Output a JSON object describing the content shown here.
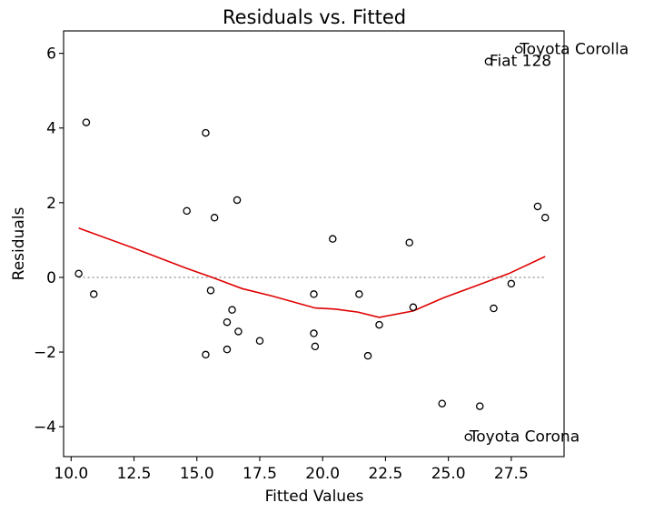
{
  "chart_data": {
    "type": "scatter",
    "title": "Residuals vs. Fitted",
    "xlabel": "Fitted Values",
    "ylabel": "Residuals",
    "xlim": [
      9.7,
      29.6
    ],
    "ylim": [
      -4.8,
      6.6
    ],
    "x_ticks": [
      10.0,
      12.5,
      15.0,
      17.5,
      20.0,
      22.5,
      25.0,
      27.5
    ],
    "x_tick_labels": [
      "10.0",
      "12.5",
      "15.0",
      "17.5",
      "20.0",
      "22.5",
      "25.0",
      "27.5"
    ],
    "y_ticks": [
      -4,
      -2,
      0,
      2,
      4,
      6
    ],
    "y_tick_labels": [
      "−4",
      "−2",
      "0",
      "2",
      "4",
      "6"
    ],
    "grid": false,
    "points": [
      {
        "x": 10.3,
        "y": 0.1
      },
      {
        "x": 10.6,
        "y": 4.15
      },
      {
        "x": 10.9,
        "y": -0.45
      },
      {
        "x": 14.6,
        "y": 1.78
      },
      {
        "x": 15.35,
        "y": 3.87
      },
      {
        "x": 15.35,
        "y": -2.07
      },
      {
        "x": 15.55,
        "y": -0.35
      },
      {
        "x": 15.7,
        "y": 1.6
      },
      {
        "x": 16.2,
        "y": -1.2
      },
      {
        "x": 16.2,
        "y": -1.93
      },
      {
        "x": 16.4,
        "y": -0.87
      },
      {
        "x": 16.6,
        "y": 2.07
      },
      {
        "x": 16.65,
        "y": -1.45
      },
      {
        "x": 17.5,
        "y": -1.7
      },
      {
        "x": 19.65,
        "y": -0.45
      },
      {
        "x": 19.65,
        "y": -1.5
      },
      {
        "x": 19.7,
        "y": -1.85
      },
      {
        "x": 20.4,
        "y": 1.03
      },
      {
        "x": 21.45,
        "y": -0.45
      },
      {
        "x": 21.8,
        "y": -2.1
      },
      {
        "x": 22.25,
        "y": -1.27
      },
      {
        "x": 23.45,
        "y": 0.93
      },
      {
        "x": 23.6,
        "y": -0.8
      },
      {
        "x": 24.75,
        "y": -3.38
      },
      {
        "x": 25.8,
        "y": -4.28
      },
      {
        "x": 26.25,
        "y": -3.45
      },
      {
        "x": 26.6,
        "y": 5.78
      },
      {
        "x": 26.8,
        "y": -0.83
      },
      {
        "x": 27.5,
        "y": -0.17
      },
      {
        "x": 27.8,
        "y": 6.1
      },
      {
        "x": 28.55,
        "y": 1.9
      },
      {
        "x": 28.85,
        "y": 1.6
      }
    ],
    "reference_line": {
      "y": 0,
      "x": [
        10.3,
        28.85
      ],
      "color": "#9e9e9e",
      "style": "dotted"
    },
    "smooth_line": {
      "color": "#e00000",
      "x": [
        10.3,
        12.5,
        14.6,
        15.6,
        16.8,
        18.0,
        19.7,
        20.5,
        21.4,
        22.25,
        23.6,
        24.8,
        26.0,
        27.4,
        28.85
      ],
      "y": [
        1.32,
        0.78,
        0.24,
        0.0,
        -0.3,
        -0.5,
        -0.82,
        -0.85,
        -0.93,
        -1.07,
        -0.9,
        -0.55,
        -0.25,
        0.1,
        0.56
      ]
    },
    "annotations": [
      {
        "text": "Toyota Corolla",
        "x": 27.8,
        "y": 6.1
      },
      {
        "text": "Fiat 128",
        "x": 26.6,
        "y": 5.78
      },
      {
        "text": "Toyota Corona",
        "x": 25.8,
        "y": -4.28
      }
    ]
  }
}
